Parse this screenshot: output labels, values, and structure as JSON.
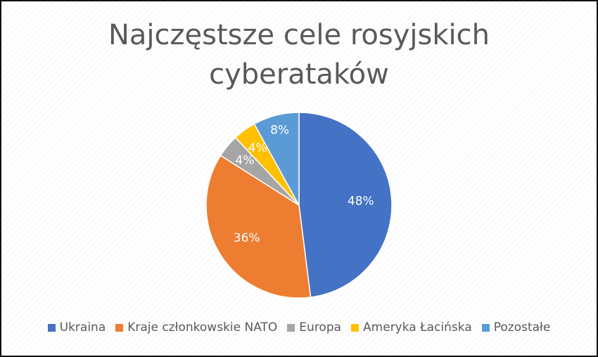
{
  "chart_data": {
    "type": "pie",
    "title_lines": [
      "Najczęstsze cele rosyjskich",
      "cyberataków"
    ],
    "legend_position": "bottom",
    "slices": [
      {
        "name": "Ukraina",
        "value": 48,
        "label": "48%",
        "color": "#4472C4"
      },
      {
        "name": "Kraje członkowskie NATO",
        "value": 36,
        "label": "36%",
        "color": "#ED7D31"
      },
      {
        "name": "Europa",
        "value": 4,
        "label": "4%",
        "color": "#A5A5A5"
      },
      {
        "name": "Ameryka Łacińska",
        "value": 4,
        "label": "4%",
        "color": "#FFC000"
      },
      {
        "name": "Pozostałe",
        "value": 8,
        "label": "8%",
        "color": "#5B9BD5"
      }
    ]
  }
}
